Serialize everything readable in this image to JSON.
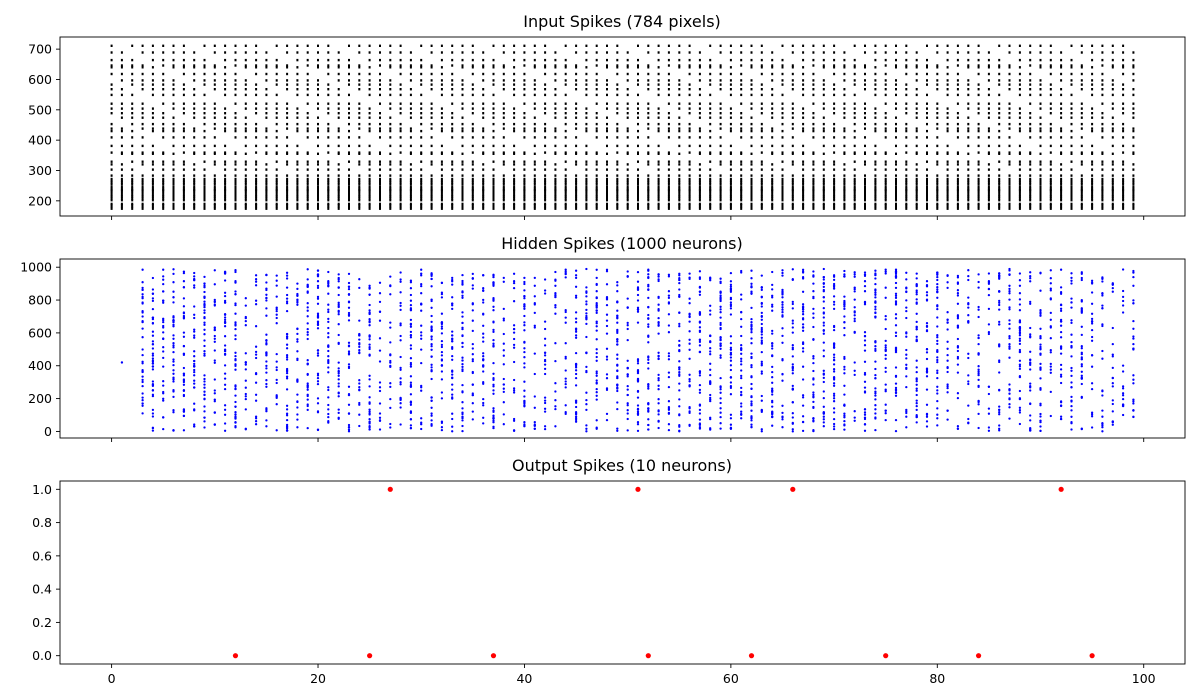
{
  "chart_data": [
    {
      "type": "scatter",
      "title": "Input Spikes (784 pixels)",
      "xlim": [
        -5,
        104
      ],
      "ylim": [
        150,
        740
      ],
      "xticks": [
        0,
        20,
        40,
        60,
        80,
        100
      ],
      "yticks": [
        200,
        300,
        400,
        500,
        600,
        700
      ],
      "show_xtick_labels": false,
      "grid": false,
      "color": "#000000",
      "pattern": {
        "time_steps": "0-99 (100 steps, spikes at every step)",
        "neuron_rows_near_bottom": [
          174,
          180,
          186,
          190,
          202,
          208,
          214,
          219,
          226,
          232,
          236,
          240,
          246,
          254,
          260,
          266,
          272
        ],
        "neuron_rows_upper": [
          283,
          303,
          320,
          329,
          355,
          359,
          381,
          409,
          430,
          438,
          453,
          474,
          489,
          504,
          520,
          549,
          568,
          583,
          597,
          618,
          640,
          646,
          664,
          689,
          711
        ],
        "note": "regular raster of spikes across all time steps; density at each column alternates"
      }
    },
    {
      "type": "scatter",
      "title": "Hidden Spikes (1000 neurons)",
      "xlim": [
        -5,
        104
      ],
      "ylim": [
        -40,
        1050
      ],
      "xticks": [
        0,
        20,
        40,
        60,
        80,
        100
      ],
      "yticks": [
        0,
        200,
        400,
        600,
        800,
        1000
      ],
      "show_xtick_labels": false,
      "grid": false,
      "color": "#0000ff",
      "pattern": {
        "first_spike": {
          "x": 1,
          "y": 420
        },
        "active_time_range": [
          2,
          99
        ],
        "neuron_range": [
          0,
          1000
        ],
        "note": "dense raster; many neurons fire at each time step from t=2 onward"
      }
    },
    {
      "type": "scatter",
      "title": "Output Spikes (10 neurons)",
      "xlim": [
        -5,
        104
      ],
      "ylim": [
        -0.05,
        1.05
      ],
      "xticks": [
        0,
        20,
        40,
        60,
        80,
        100
      ],
      "yticks": [
        0.0,
        0.2,
        0.4,
        0.6,
        0.8,
        1.0
      ],
      "ytick_labels": [
        "0.0",
        "0.2",
        "0.4",
        "0.6",
        "0.8",
        "1.0"
      ],
      "xtick_labels": [
        "0",
        "20",
        "40",
        "60",
        "80",
        "100"
      ],
      "show_xtick_labels": true,
      "grid": false,
      "color": "#ff0000",
      "points": [
        {
          "x": 12,
          "y": 0
        },
        {
          "x": 25,
          "y": 0
        },
        {
          "x": 27,
          "y": 1
        },
        {
          "x": 37,
          "y": 0
        },
        {
          "x": 51,
          "y": 1
        },
        {
          "x": 52,
          "y": 0
        },
        {
          "x": 62,
          "y": 0
        },
        {
          "x": 66,
          "y": 1
        },
        {
          "x": 75,
          "y": 0
        },
        {
          "x": 84,
          "y": 0
        },
        {
          "x": 92,
          "y": 1
        },
        {
          "x": 95,
          "y": 0
        }
      ]
    }
  ]
}
